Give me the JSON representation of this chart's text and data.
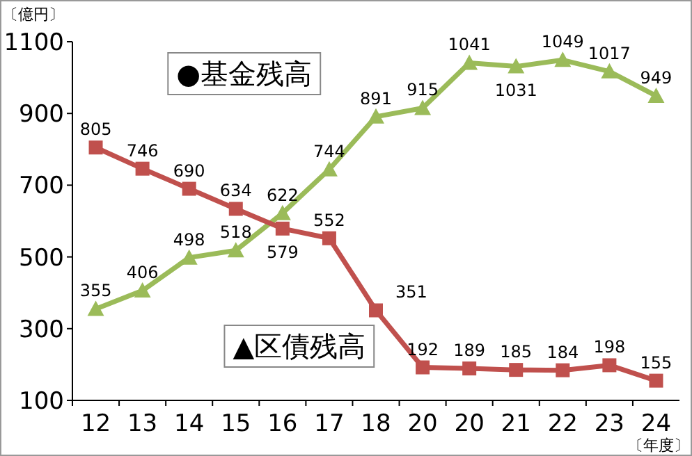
{
  "chart_data": {
    "type": "line",
    "ylabel": "〔億円〕",
    "xlabel": "〔年度〕",
    "categories": [
      "12",
      "13",
      "14",
      "15",
      "16",
      "17",
      "18",
      "20",
      "20",
      "21",
      "22",
      "23",
      "24"
    ],
    "series": [
      {
        "name": "●基金残高",
        "color": "#9bbb59",
        "marker": "triangle",
        "values": [
          355,
          406,
          498,
          518,
          622,
          744,
          891,
          915,
          1041,
          1031,
          1049,
          1017,
          949
        ]
      },
      {
        "name": "▲区債残高",
        "color": "#c0504d",
        "marker": "square",
        "values": [
          805,
          746,
          690,
          634,
          579,
          552,
          351,
          192,
          189,
          185,
          184,
          198,
          155
        ]
      }
    ],
    "ylim": [
      100,
      1100
    ],
    "yticks": [
      100,
      300,
      500,
      700,
      900,
      1100
    ],
    "data_labels": true,
    "grid": false,
    "legend": false
  }
}
